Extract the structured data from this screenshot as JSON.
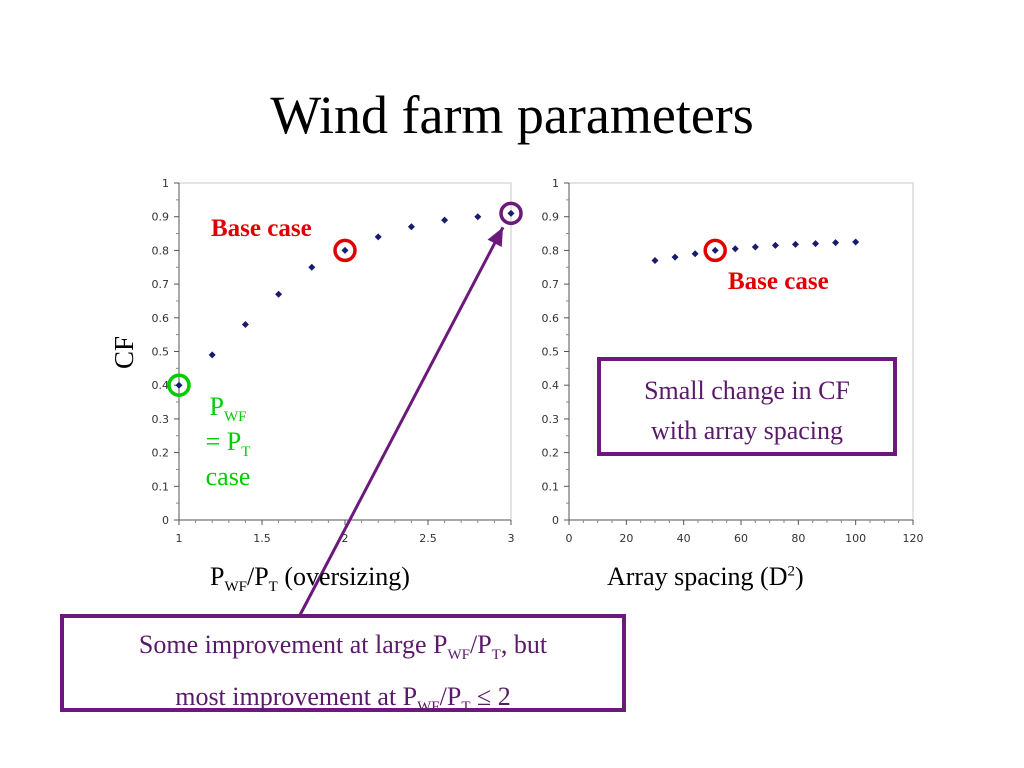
{
  "title": "Wind farm parameters",
  "left_axis": {
    "ylabel": "CF",
    "xlabel_p": "P",
    "xlabel_wf": "WF",
    "xlabel_slash_p": "/P",
    "xlabel_t": "T",
    "xlabel_rest": " (oversizing)"
  },
  "right_axis": {
    "xlabel_text": "Array spacing (D",
    "xlabel_sup": "2",
    "xlabel_close": ")"
  },
  "annotations": {
    "base_case_left": "Base case",
    "base_case_right": "Base case",
    "green_p": "P",
    "green_wf": "WF",
    "green_eq": "= P",
    "green_t": "T",
    "green_case": "case",
    "box_right_line1": "Small change in CF",
    "box_right_line2": "with array spacing",
    "box_bottom_1a": "Some improvement at large P",
    "box_bottom_1b": "WF",
    "box_bottom_1c": "/P",
    "box_bottom_1d": "T",
    "box_bottom_1e": ", but",
    "box_bottom_2a": "most improvement at P",
    "box_bottom_2b": "WF",
    "box_bottom_2c": "/P",
    "box_bottom_2d": "T",
    "box_bottom_2e": " ≤ 2"
  },
  "colors": {
    "marker": "#1a1a6e",
    "highlight_red": "#e00000",
    "highlight_green": "#00cc00",
    "highlight_purple": "#6b1a7c"
  },
  "chart_data": [
    {
      "type": "scatter",
      "x": [
        1.0,
        1.2,
        1.4,
        1.6,
        1.8,
        2.0,
        2.2,
        2.4,
        2.6,
        2.8,
        3.0
      ],
      "y": [
        0.4,
        0.49,
        0.58,
        0.67,
        0.75,
        0.8,
        0.84,
        0.87,
        0.89,
        0.9,
        0.91
      ],
      "xlim": [
        1,
        3
      ],
      "ylim": [
        0,
        1
      ],
      "xticks": [
        "1",
        "1.5",
        "2",
        "2.5",
        "3"
      ],
      "yticks": [
        "0",
        "0.1",
        "0.2",
        "0.3",
        "0.4",
        "0.5",
        "0.6",
        "0.7",
        "0.8",
        "0.9",
        "1"
      ],
      "ylabel": "CF",
      "xlabel": "PWF/PT (oversizing)",
      "highlights": [
        {
          "x": 1.0,
          "y": 0.4,
          "color": "green"
        },
        {
          "x": 2.0,
          "y": 0.8,
          "color": "red"
        },
        {
          "x": 3.0,
          "y": 0.91,
          "color": "purple"
        }
      ]
    },
    {
      "type": "scatter",
      "x": [
        30,
        37,
        44,
        51,
        58,
        65,
        72,
        79,
        86,
        93,
        100
      ],
      "y": [
        0.77,
        0.78,
        0.79,
        0.8,
        0.805,
        0.81,
        0.815,
        0.818,
        0.82,
        0.823,
        0.825
      ],
      "xlim": [
        0,
        120
      ],
      "ylim": [
        0,
        1
      ],
      "xticks": [
        "0",
        "20",
        "40",
        "60",
        "80",
        "100",
        "120"
      ],
      "yticks": [
        "0",
        "0.1",
        "0.2",
        "0.3",
        "0.4",
        "0.5",
        "0.6",
        "0.7",
        "0.8",
        "0.9",
        "1"
      ],
      "xlabel": "Array spacing (D2)",
      "highlights": [
        {
          "x": 51,
          "y": 0.8,
          "color": "red"
        }
      ]
    }
  ]
}
